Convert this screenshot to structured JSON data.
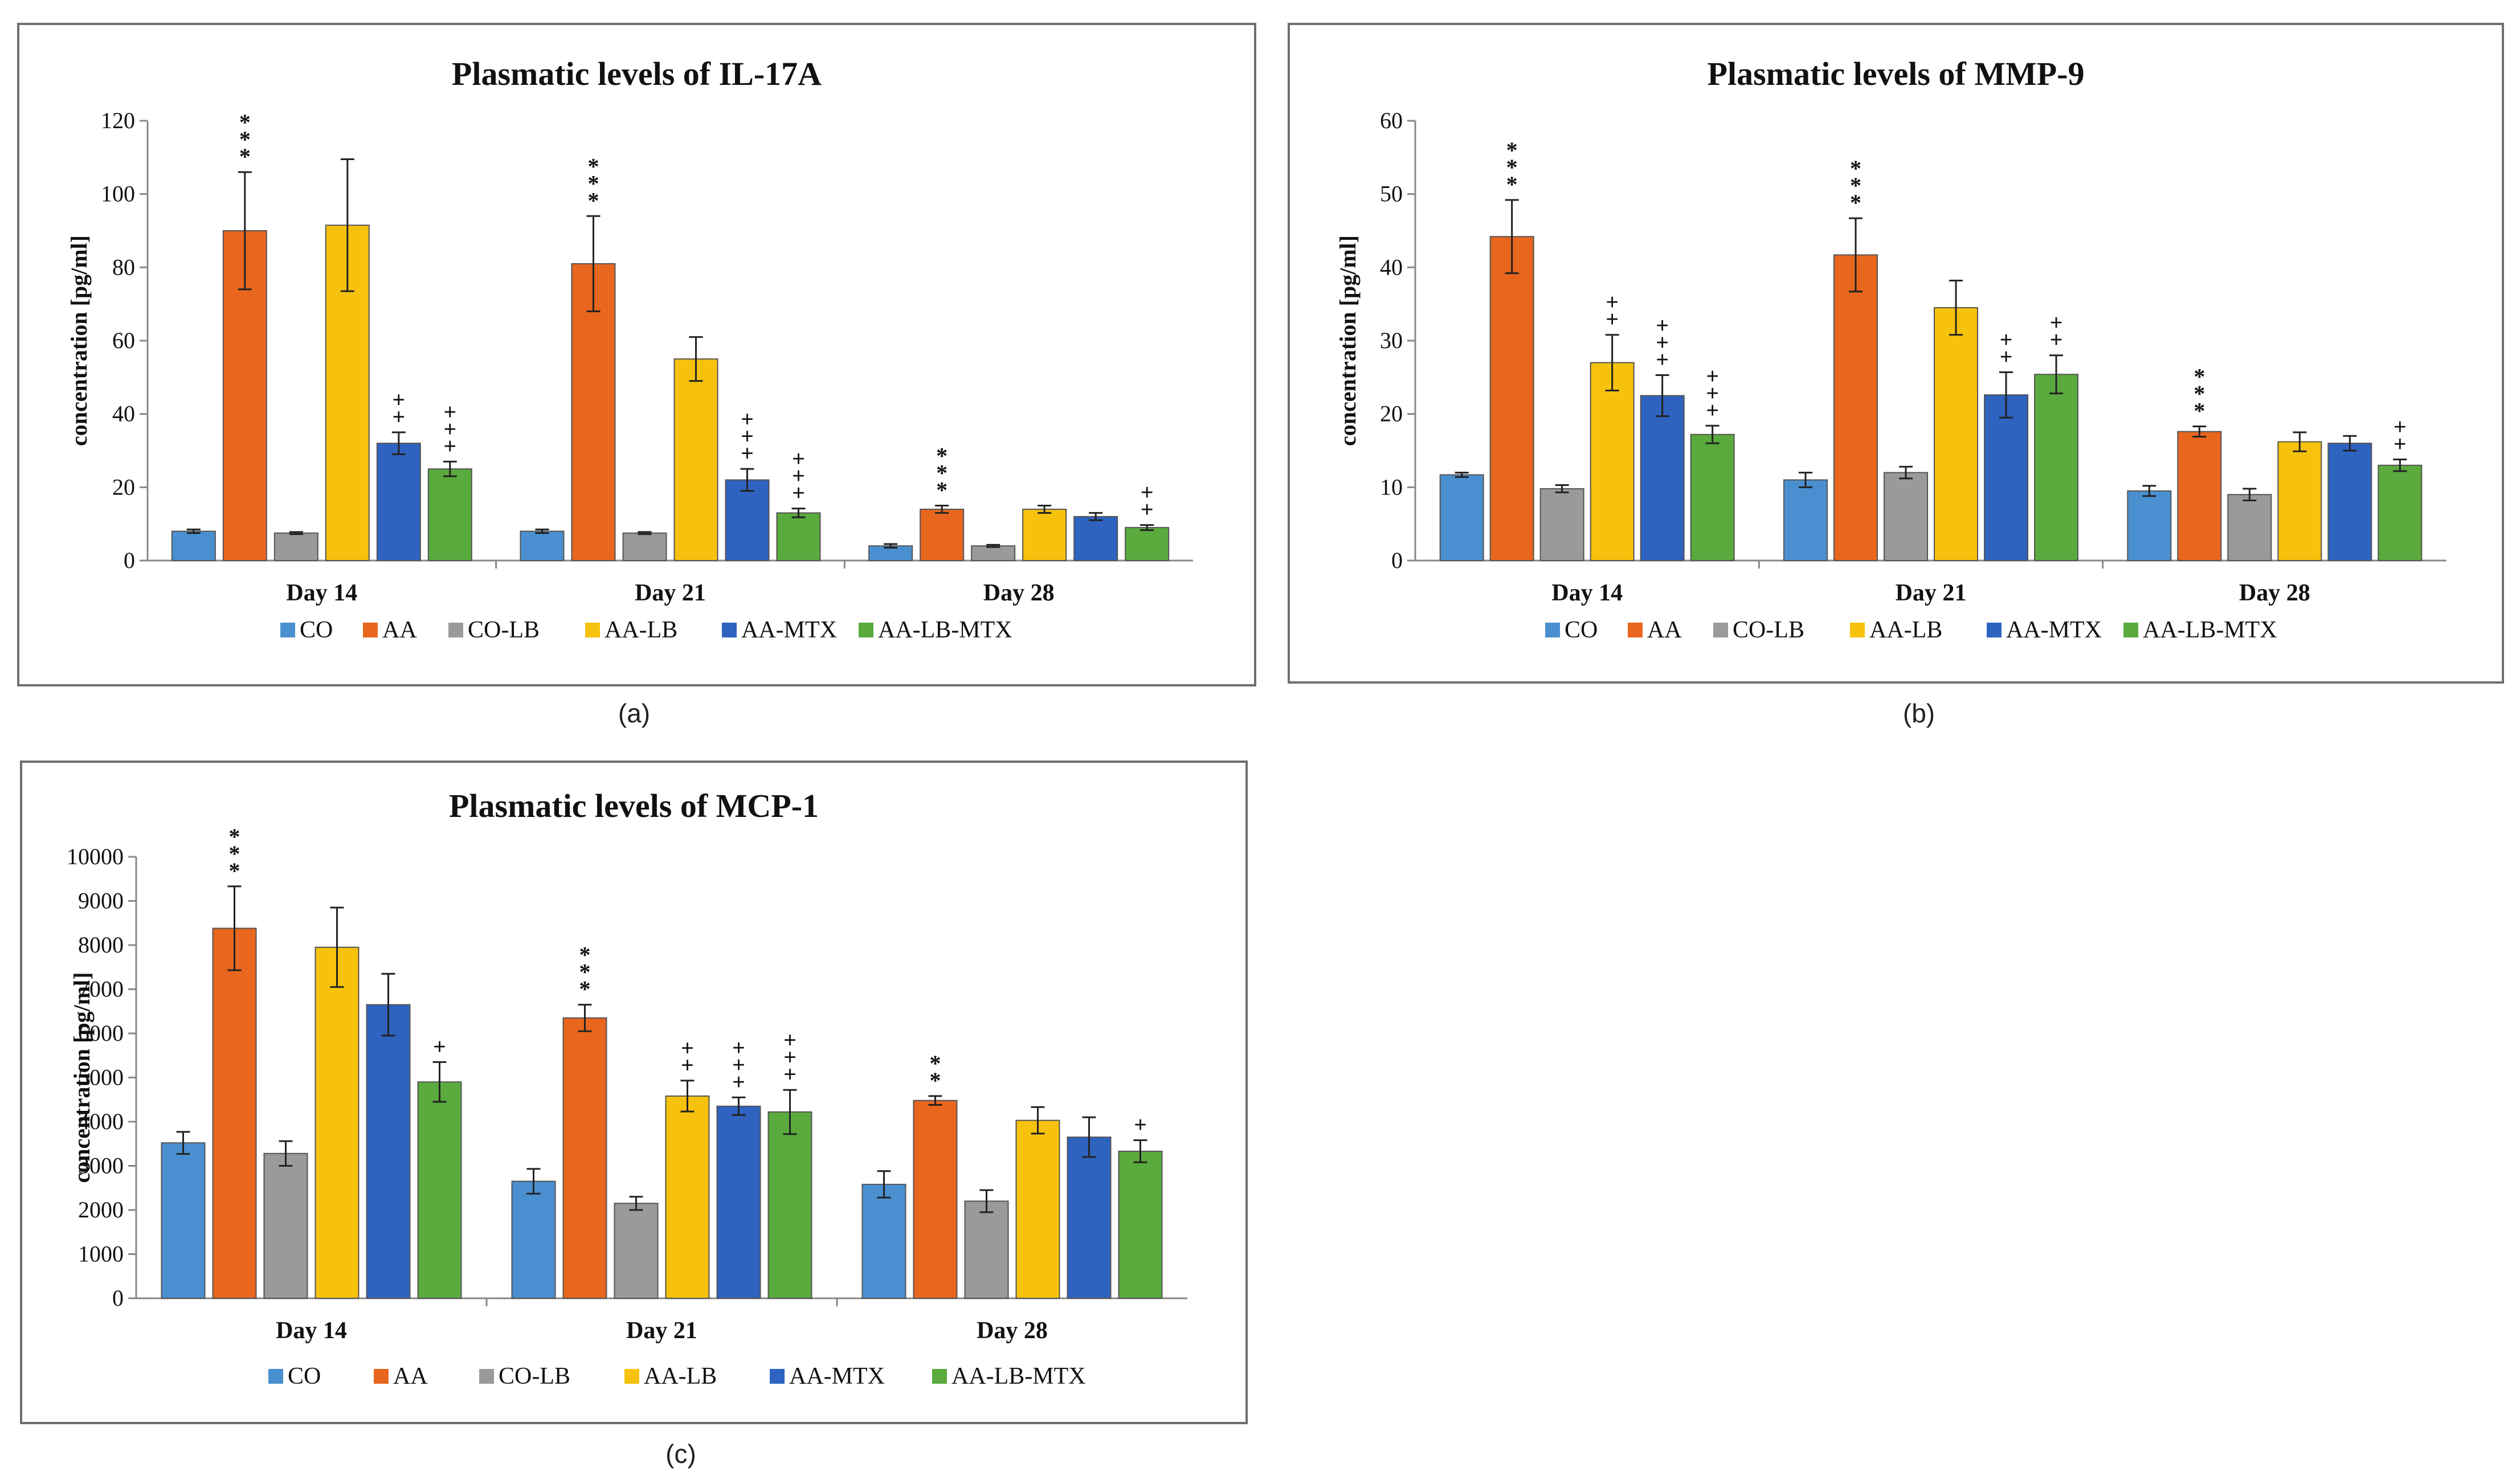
{
  "colors": {
    "CO": "#4a90d0",
    "AA": "#e8661e",
    "CO-LB": "#9a9a9a",
    "AA-LB": "#f7c20d",
    "AA-MTX": "#2f63c0",
    "AA-LB-MTX": "#5aaa3e"
  },
  "captions": [
    "(a)",
    "(b)",
    "(c)"
  ],
  "chart_data": [
    {
      "type": "bar",
      "title": "Plasmatic levels of IL-17A",
      "ylabel": "concentration [pg/ml]",
      "xlabel": "",
      "categories": [
        "Day 14",
        "Day 21",
        "Day 28"
      ],
      "ylim": [
        0,
        120
      ],
      "yticks": [
        0,
        20,
        40,
        60,
        80,
        100,
        120
      ],
      "legend_position": "bottom",
      "series": [
        {
          "name": "CO",
          "values": [
            8,
            8,
            4
          ],
          "errors": [
            0.5,
            0.5,
            0.5
          ],
          "marks": [
            "",
            "",
            ""
          ]
        },
        {
          "name": "AA",
          "values": [
            90,
            81,
            14
          ],
          "errors": [
            16,
            13,
            1
          ],
          "marks": [
            "***",
            "***",
            "***"
          ]
        },
        {
          "name": "CO-LB",
          "values": [
            7.5,
            7.5,
            4
          ],
          "errors": [
            0.3,
            0.3,
            0.3
          ],
          "marks": [
            "",
            "",
            ""
          ]
        },
        {
          "name": "AA-LB",
          "values": [
            91.5,
            55,
            14
          ],
          "errors": [
            18,
            6,
            1
          ],
          "marks": [
            "",
            "",
            ""
          ]
        },
        {
          "name": "AA-MTX",
          "values": [
            32,
            22,
            12
          ],
          "errors": [
            3,
            3,
            1
          ],
          "marks": [
            "++",
            "+++",
            ""
          ]
        },
        {
          "name": "AA-LB-MTX",
          "values": [
            25,
            13,
            9
          ],
          "errors": [
            2,
            1.2,
            0.7
          ],
          "marks": [
            "+++",
            "+++",
            "++"
          ]
        }
      ]
    },
    {
      "type": "bar",
      "title": "Plasmatic levels of MMP-9",
      "ylabel": "concentration [pg/ml]",
      "xlabel": "",
      "categories": [
        "Day 14",
        "Day 21",
        "Day 28"
      ],
      "ylim": [
        0,
        60
      ],
      "yticks": [
        0,
        10,
        20,
        30,
        40,
        50,
        60
      ],
      "legend_position": "bottom",
      "series": [
        {
          "name": "CO",
          "values": [
            11.7,
            11,
            9.5
          ],
          "errors": [
            0.3,
            1,
            0.7
          ],
          "marks": [
            "",
            "",
            ""
          ]
        },
        {
          "name": "AA",
          "values": [
            44.2,
            41.7,
            17.6
          ],
          "errors": [
            5,
            5,
            0.7
          ],
          "marks": [
            "***",
            "***",
            "***"
          ]
        },
        {
          "name": "CO-LB",
          "values": [
            9.8,
            12,
            9
          ],
          "errors": [
            0.5,
            0.8,
            0.8
          ],
          "marks": [
            "",
            "",
            ""
          ]
        },
        {
          "name": "AA-LB",
          "values": [
            27,
            34.5,
            16.2
          ],
          "errors": [
            3.8,
            3.7,
            1.3
          ],
          "marks": [
            "++",
            "",
            ""
          ]
        },
        {
          "name": "AA-MTX",
          "values": [
            22.5,
            22.6,
            16
          ],
          "errors": [
            2.8,
            3.1,
            1
          ],
          "marks": [
            "+++",
            "++",
            ""
          ]
        },
        {
          "name": "AA-LB-MTX",
          "values": [
            17.2,
            25.4,
            13
          ],
          "errors": [
            1.2,
            2.6,
            0.8
          ],
          "marks": [
            "+++",
            "++",
            "++"
          ]
        }
      ]
    },
    {
      "type": "bar",
      "title": "Plasmatic levels of MCP-1",
      "ylabel": "concentration [pg/ml]",
      "xlabel": "",
      "categories": [
        "Day 14",
        "Day 21",
        "Day 28"
      ],
      "ylim": [
        0,
        10000
      ],
      "yticks": [
        0,
        1000,
        2000,
        3000,
        4000,
        5000,
        6000,
        7000,
        8000,
        9000,
        10000
      ],
      "legend_position": "bottom",
      "series": [
        {
          "name": "CO",
          "values": [
            3520,
            2650,
            2580
          ],
          "errors": [
            250,
            280,
            300
          ],
          "marks": [
            "",
            "",
            ""
          ]
        },
        {
          "name": "AA",
          "values": [
            8380,
            6350,
            4480
          ],
          "errors": [
            950,
            300,
            100
          ],
          "marks": [
            "***",
            "***",
            "**"
          ]
        },
        {
          "name": "CO-LB",
          "values": [
            3280,
            2150,
            2200
          ],
          "errors": [
            280,
            150,
            250
          ],
          "marks": [
            "",
            "",
            ""
          ]
        },
        {
          "name": "AA-LB",
          "values": [
            7950,
            4580,
            4030
          ],
          "errors": [
            900,
            350,
            300
          ],
          "marks": [
            "",
            "++",
            ""
          ]
        },
        {
          "name": "AA-MTX",
          "values": [
            6650,
            4350,
            3650
          ],
          "errors": [
            700,
            200,
            450
          ],
          "marks": [
            "",
            "+++",
            ""
          ]
        },
        {
          "name": "AA-LB-MTX",
          "values": [
            4900,
            4220,
            3330
          ],
          "errors": [
            450,
            500,
            250
          ],
          "marks": [
            "+",
            "+++",
            "+"
          ]
        }
      ]
    }
  ]
}
